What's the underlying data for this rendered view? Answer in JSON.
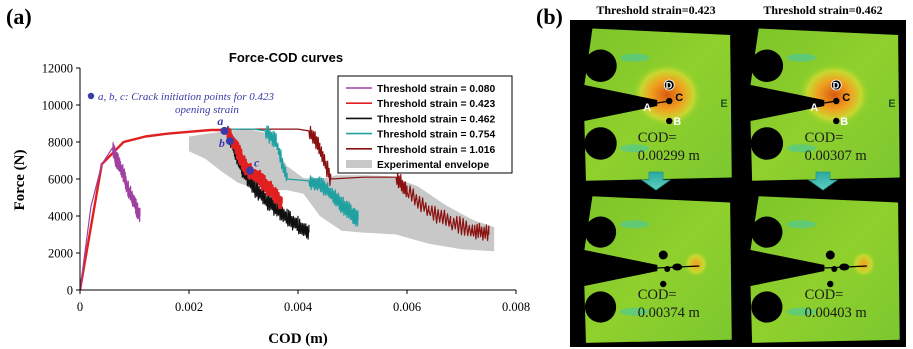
{
  "panel_a": {
    "label": "(a)",
    "chart_data": {
      "type": "line",
      "title": "Force-COD curves",
      "xlabel": "COD (m)",
      "ylabel": "Force (N)",
      "xlim": [
        0,
        0.008
      ],
      "ylim": [
        0,
        12000
      ],
      "x_ticks": [
        "0",
        "0.002",
        "0.004",
        "0.006",
        "0.008"
      ],
      "y_ticks": [
        "0",
        "2000",
        "4000",
        "6000",
        "8000",
        "10000",
        "12000"
      ],
      "grid": false,
      "legend_position": "top-right",
      "series": [
        {
          "name": "Threshold strain = 0.080",
          "color": "#a040a0",
          "x": [
            0,
            0.0002,
            0.0004,
            0.0006,
            0.00065,
            0.0007,
            0.0008,
            0.0009,
            0.001,
            0.0011
          ],
          "y": [
            0,
            4500,
            6800,
            7700,
            7200,
            6900,
            6200,
            5300,
            4700,
            4000
          ]
        },
        {
          "name": "Threshold strain = 0.423",
          "color": "#e02020",
          "x": [
            0,
            0.0004,
            0.0008,
            0.0012,
            0.0016,
            0.002,
            0.0024,
            0.0027,
            0.0029,
            0.003,
            0.0031,
            0.0033,
            0.0035,
            0.0037
          ],
          "y": [
            0,
            6800,
            8000,
            8300,
            8450,
            8550,
            8650,
            8650,
            7500,
            6800,
            6400,
            6000,
            5400,
            4700
          ]
        },
        {
          "name": "Threshold strain = 0.462",
          "color": "#101010",
          "x": [
            0,
            0.0004,
            0.0008,
            0.0012,
            0.0016,
            0.002,
            0.0024,
            0.0027,
            0.0028,
            0.0029,
            0.003,
            0.0032,
            0.0034,
            0.0036,
            0.0038,
            0.004,
            0.0042
          ],
          "y": [
            0,
            6800,
            8000,
            8300,
            8450,
            8550,
            8650,
            8700,
            7900,
            7100,
            6400,
            5500,
            4900,
            4400,
            3900,
            3500,
            3100
          ]
        },
        {
          "name": "Threshold strain = 0.754",
          "color": "#20a0a0",
          "x": [
            0,
            0.0004,
            0.0008,
            0.0012,
            0.0016,
            0.002,
            0.0024,
            0.0028,
            0.0032,
            0.0034,
            0.0036,
            0.0038,
            0.0042,
            0.0044,
            0.0046,
            0.0048,
            0.005,
            0.0051
          ],
          "y": [
            0,
            6800,
            8000,
            8300,
            8450,
            8550,
            8650,
            8700,
            8700,
            8600,
            8000,
            6000,
            5900,
            5700,
            5200,
            4600,
            4100,
            3800
          ]
        },
        {
          "name": "Threshold strain = 1.016",
          "color": "#8b1010",
          "x": [
            0,
            0.0004,
            0.0008,
            0.0012,
            0.0016,
            0.002,
            0.0024,
            0.0028,
            0.0032,
            0.0036,
            0.004,
            0.0042,
            0.0044,
            0.0046,
            0.0052,
            0.0058,
            0.006,
            0.0064,
            0.0068,
            0.0072,
            0.0075
          ],
          "y": [
            0,
            6800,
            8000,
            8300,
            8450,
            8550,
            8650,
            8700,
            8700,
            8700,
            8700,
            8600,
            7700,
            6000,
            6100,
            6100,
            5300,
            4300,
            3700,
            3200,
            3000
          ]
        },
        {
          "name": "Experimental envelope",
          "color": "#c8c8c8",
          "type": "area",
          "upper_x": [
            0.002,
            0.0027,
            0.0031,
            0.0034,
            0.0036,
            0.0038,
            0.0041,
            0.0045,
            0.0047,
            0.0052,
            0.0057,
            0.0062,
            0.0067,
            0.0072,
            0.0076
          ],
          "upper_y": [
            8300,
            8600,
            8700,
            8500,
            7600,
            6700,
            6050,
            6050,
            6200,
            6200,
            6150,
            5600,
            4600,
            3800,
            3400
          ],
          "lower_x": [
            0.0076,
            0.007,
            0.0064,
            0.0058,
            0.0052,
            0.0048,
            0.0044,
            0.0041,
            0.0038,
            0.0035,
            0.0032,
            0.0029,
            0.0026,
            0.0023,
            0.002
          ],
          "lower_y": [
            2100,
            2200,
            2500,
            3000,
            3100,
            3200,
            4000,
            5200,
            5400,
            5400,
            5500,
            5800,
            6400,
            7100,
            7500
          ]
        }
      ],
      "annotation": {
        "text": "a, b, c: Crack initiation points for 0.423 opening strain",
        "line1": "a, b, c: Crack initiation points for 0.423",
        "line2": "opening strain",
        "color": "#3a3aa8"
      },
      "initiation_points": [
        {
          "label": "a",
          "x": 0.00265,
          "y": 8600
        },
        {
          "label": "b",
          "x": 0.00275,
          "y": 8050
        },
        {
          "label": "c",
          "x": 0.00312,
          "y": 6450
        }
      ]
    }
  },
  "panel_b": {
    "label": "(b)",
    "columns": [
      {
        "title": "Threshold strain=0.423",
        "cod_top_label": "COD=",
        "cod_top_value": "0.00299 m",
        "cod_bottom_label": "COD=",
        "cod_bottom_value": "0.00374 m"
      },
      {
        "title": "Threshold strain=0.462",
        "cod_top_label": "COD=",
        "cod_top_value": "0.00307 m",
        "cod_bottom_label": "COD=",
        "cod_bottom_value": "0.00403 m"
      }
    ],
    "point_labels": [
      "A",
      "B",
      "C",
      "D",
      "E"
    ],
    "colors": {
      "field_green": "#86d02a",
      "hotspot_orange": "#e07818",
      "arrow_cyan": "#40c0b0",
      "frame": "#000000"
    }
  }
}
